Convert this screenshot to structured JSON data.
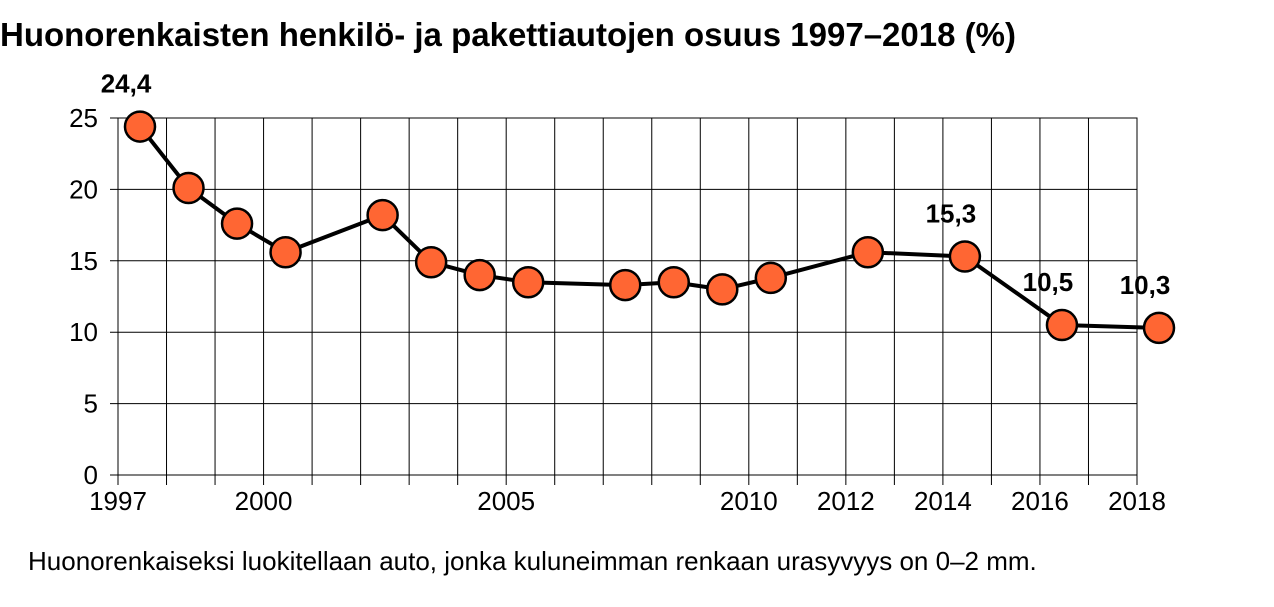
{
  "chart_data": {
    "type": "line",
    "title": "Huonorenkaisten henkilö- ja pakettiautojen osuus 1997–2018 (%)",
    "footnote": "Huonorenkaiseksi luokitellaan auto, jonka kuluneimman renkaan urasyvyys on 0–2 mm.",
    "xlim": [
      1997,
      2018
    ],
    "ylim": [
      0,
      25
    ],
    "x_ticks": [
      {
        "value": 1997,
        "label": "1997"
      },
      {
        "value": 2000,
        "label": "2000"
      },
      {
        "value": 2005,
        "label": "2005"
      },
      {
        "value": 2010,
        "label": "2010"
      },
      {
        "value": 2012,
        "label": "2012"
      },
      {
        "value": 2014,
        "label": "2014"
      },
      {
        "value": 2016,
        "label": "2016"
      },
      {
        "value": 2018,
        "label": "2018"
      }
    ],
    "y_ticks": [
      {
        "value": 0,
        "label": "0"
      },
      {
        "value": 5,
        "label": "5"
      },
      {
        "value": 10,
        "label": "10"
      },
      {
        "value": 15,
        "label": "15"
      },
      {
        "value": 20,
        "label": "20"
      },
      {
        "value": 25,
        "label": "25"
      }
    ],
    "grid": true,
    "colors": {
      "marker_fill": "#ff6633",
      "line": "#000000",
      "grid": "#000000"
    },
    "series": [
      {
        "x": [
          1997,
          1998,
          1999,
          2000,
          2002,
          2003,
          2004,
          2005,
          2007,
          2008,
          2009,
          2010,
          2012,
          2014,
          2016,
          2018
        ],
        "values": [
          24.4,
          20.1,
          17.6,
          15.6,
          18.2,
          14.9,
          14.0,
          13.5,
          13.3,
          13.5,
          13.0,
          13.8,
          15.6,
          15.3,
          10.5,
          10.3
        ],
        "data_labels": {
          "0": "24,4",
          "13": "15,3",
          "14": "10,5",
          "15": "10,3"
        }
      }
    ]
  }
}
